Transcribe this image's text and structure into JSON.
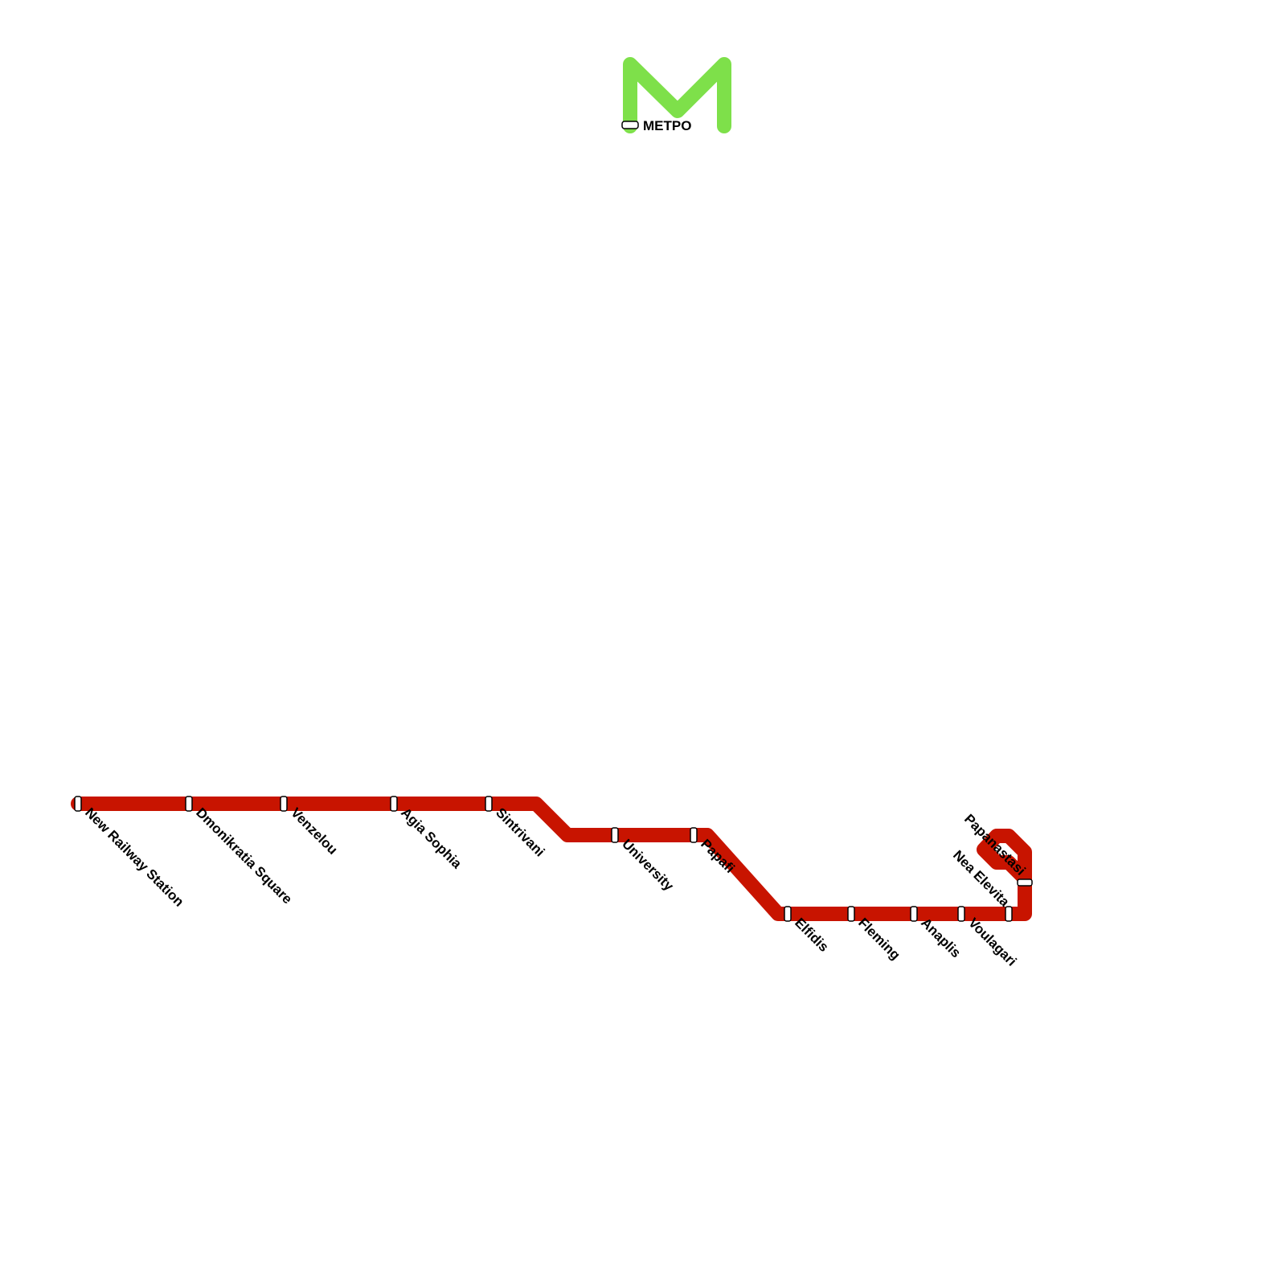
{
  "colors": {
    "red_line": "#c81400",
    "green_line": "#7ee04a",
    "station_fill": "#ffffff",
    "station_stroke": "#000000"
  },
  "legend": {
    "label": "METPO"
  },
  "stations": [
    {
      "name": "New Railway Station"
    },
    {
      "name": "Dmonikratia Square"
    },
    {
      "name": "Venzelou"
    },
    {
      "name": "Agia Sophia"
    },
    {
      "name": "Sintrivani"
    },
    {
      "name": "University"
    },
    {
      "name": "Papafi"
    },
    {
      "name": "Elfidis"
    },
    {
      "name": "Fleming"
    },
    {
      "name": "Anaplis"
    },
    {
      "name": "Voulagari"
    },
    {
      "name": "Nea Elevita"
    },
    {
      "name": "Papanastasi"
    }
  ]
}
